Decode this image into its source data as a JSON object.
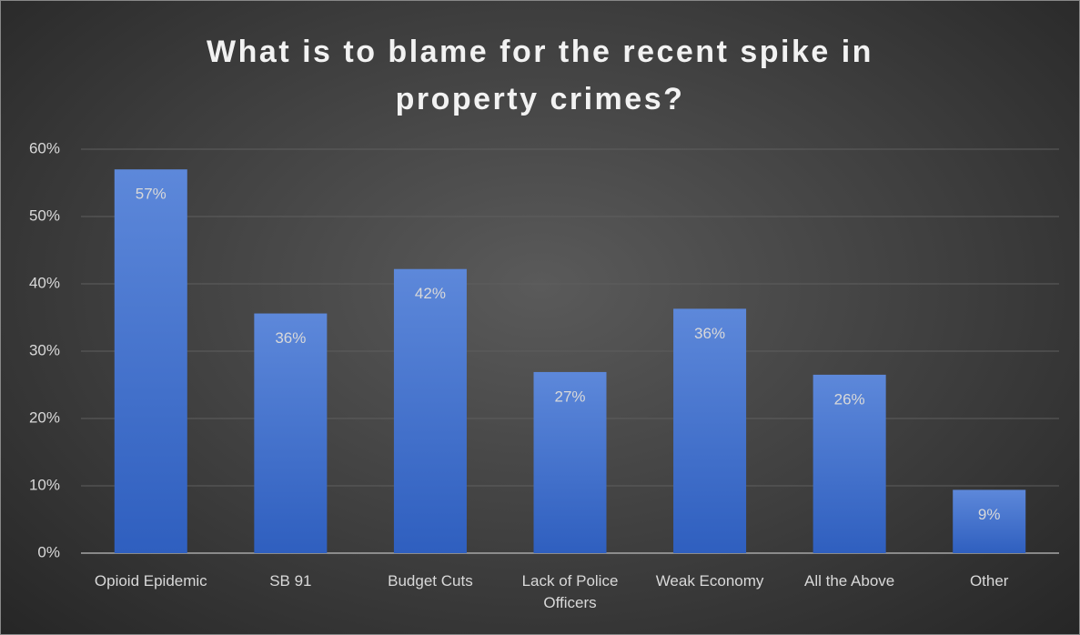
{
  "chart_data": {
    "type": "bar",
    "title": "What is to blame for the recent spike in property crimes?",
    "categories": [
      "Opioid Epidemic",
      "SB 91",
      "Budget Cuts",
      "Lack of Police Officers",
      "Weak Economy",
      "All the Above",
      "Other"
    ],
    "values": [
      57,
      35.6,
      42.2,
      26.9,
      36.3,
      26.5,
      9.4
    ],
    "value_labels": [
      "57%",
      "36%",
      "42%",
      "27%",
      "36%",
      "26%",
      "9%"
    ],
    "color": "#4a76cf",
    "ylim": [
      0,
      60
    ],
    "yticks": [
      {
        "value": 0,
        "label": "0%"
      },
      {
        "value": 10,
        "label": "10%"
      },
      {
        "value": 20,
        "label": "20%"
      },
      {
        "value": 30,
        "label": "30%"
      },
      {
        "value": 40,
        "label": "40%"
      },
      {
        "value": 50,
        "label": "50%"
      },
      {
        "value": 60,
        "label": "60%"
      }
    ],
    "grid": true
  }
}
